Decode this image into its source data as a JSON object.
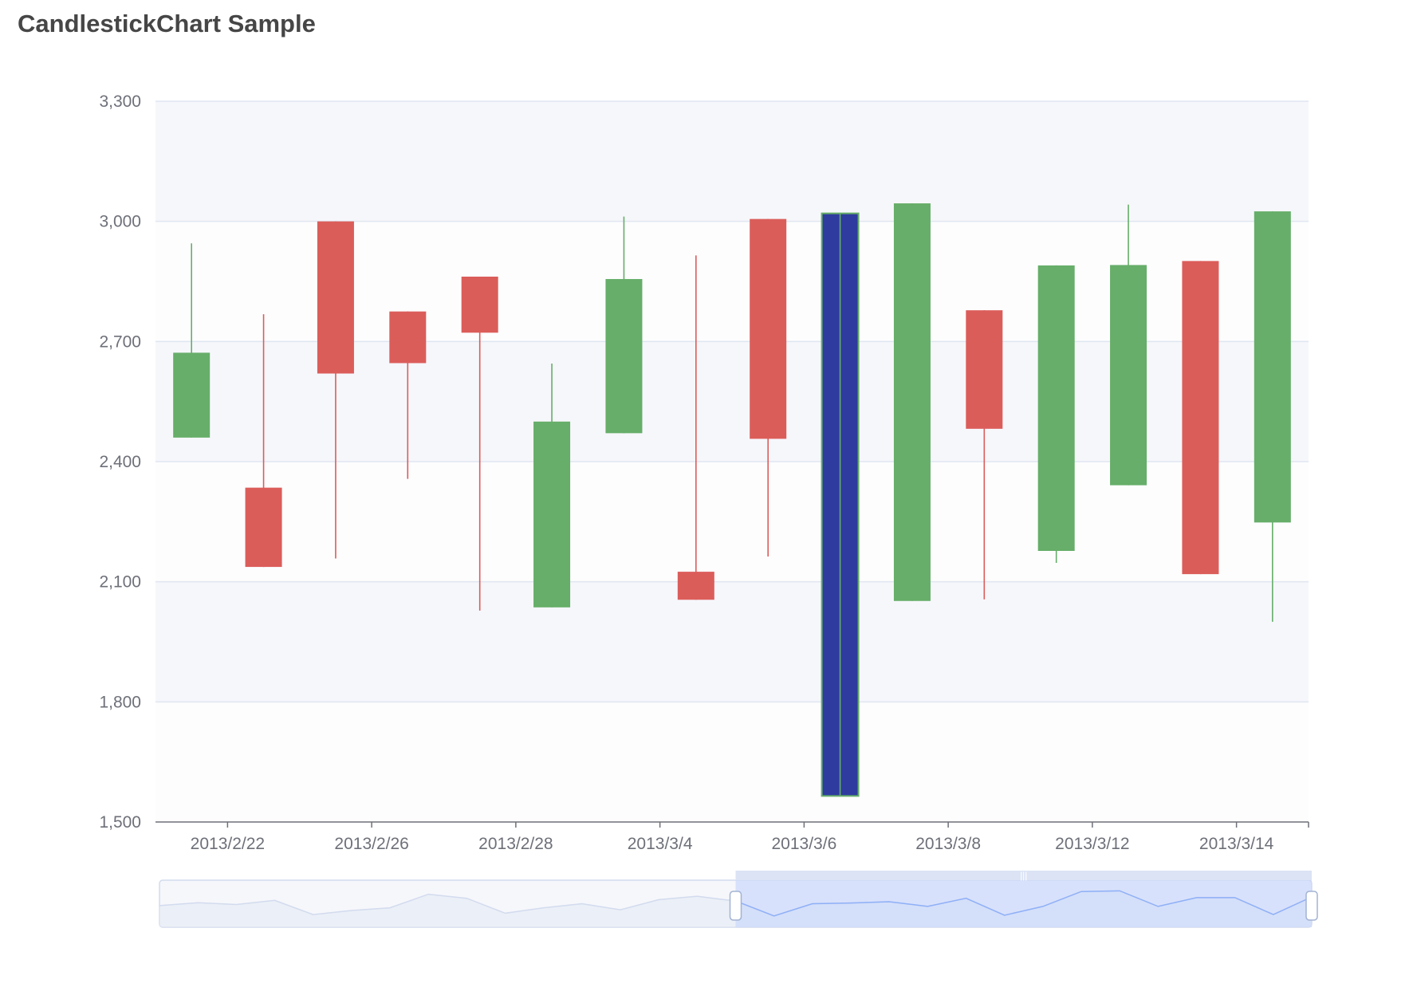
{
  "title": "CandlestickChart Sample",
  "colors": {
    "up": "#66ae69",
    "down": "#db5d5a",
    "highlight": "#2f3b9e",
    "grid": "#e0e6f1",
    "band": "#f6f7fb",
    "axis": "#6e7079"
  },
  "chart_data": {
    "type": "candlestick",
    "title": "CandlestickChart Sample",
    "ylim": [
      1500,
      3300
    ],
    "yticks": [
      1500,
      1800,
      2100,
      2400,
      2700,
      3000,
      3300
    ],
    "ytick_labels": [
      "1,500",
      "1,800",
      "2,100",
      "2,400",
      "2,700",
      "3,000",
      "3,300"
    ],
    "xtick_labels": [
      "2013/2/22",
      "2013/2/26",
      "2013/2/28",
      "2013/3/4",
      "2013/3/6",
      "2013/3/8",
      "2013/3/12",
      "2013/3/14"
    ],
    "candles": [
      {
        "open": 2460,
        "close": 2672,
        "low": 2460,
        "high": 2945,
        "dir": "up"
      },
      {
        "open": 2335,
        "close": 2137,
        "low": 2137,
        "high": 2768,
        "dir": "down"
      },
      {
        "open": 3000,
        "close": 2620,
        "low": 2158,
        "high": 3000,
        "dir": "down"
      },
      {
        "open": 2775,
        "close": 2646,
        "low": 2357,
        "high": 2775,
        "dir": "down"
      },
      {
        "open": 2862,
        "close": 2722,
        "low": 2028,
        "high": 2862,
        "dir": "down"
      },
      {
        "open": 2036,
        "close": 2500,
        "low": 2036,
        "high": 2645,
        "dir": "up"
      },
      {
        "open": 2471,
        "close": 2856,
        "low": 2471,
        "high": 3012,
        "dir": "up"
      },
      {
        "open": 2125,
        "close": 2055,
        "low": 2055,
        "high": 2915,
        "dir": "down"
      },
      {
        "open": 3006,
        "close": 2457,
        "low": 2163,
        "high": 3006,
        "dir": "down"
      },
      {
        "open": 1565,
        "close": 3020,
        "low": 1565,
        "high": 3020,
        "dir": "up",
        "highlight": true
      },
      {
        "open": 2052,
        "close": 3045,
        "low": 2052,
        "high": 3045,
        "dir": "up"
      },
      {
        "open": 2778,
        "close": 2482,
        "low": 2056,
        "high": 2778,
        "dir": "down"
      },
      {
        "open": 2177,
        "close": 2890,
        "low": 2147,
        "high": 2890,
        "dir": "up"
      },
      {
        "open": 2341,
        "close": 2891,
        "low": 2341,
        "high": 3042,
        "dir": "up"
      },
      {
        "open": 2901,
        "close": 2119,
        "low": 2119,
        "high": 2901,
        "dir": "down"
      },
      {
        "open": 2248,
        "close": 3025,
        "low": 2000,
        "high": 3025,
        "dir": "up"
      }
    ],
    "data_zoom": {
      "start": 0.5,
      "end": 1.0,
      "overview": [
        2672,
        2715,
        2688,
        2750,
        2540,
        2600,
        2640,
        2840,
        2780,
        2560,
        2640,
        2700,
        2610,
        2760,
        2810,
        2740,
        2520,
        2700,
        2710,
        2730,
        2660,
        2780,
        2530,
        2660,
        2880,
        2890,
        2660,
        2790,
        2790,
        2540,
        2800
      ]
    }
  }
}
